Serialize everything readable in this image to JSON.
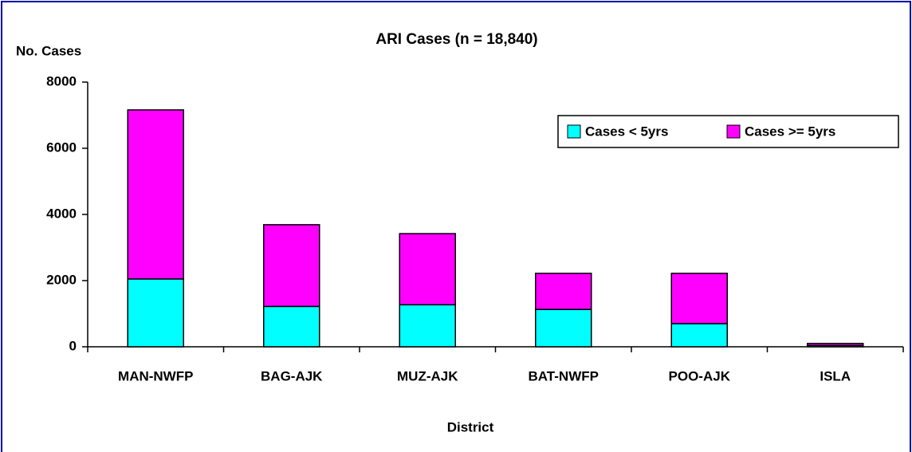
{
  "chart_data": {
    "type": "stacked_bar",
    "title": "ARI Cases (n = 18,840)",
    "y_label": "No. Cases",
    "x_label": "District",
    "categories": [
      "MAN-NWFP",
      "BAG-AJK",
      "MUZ-AJK",
      "BAT-NWFP",
      "POO-AJK",
      "ISLA"
    ],
    "series": [
      {
        "name": "Cases < 5yrs",
        "color": "#00ffff",
        "values": [
          2050,
          1220,
          1270,
          1130,
          700,
          40
        ]
      },
      {
        "name": "Cases >= 5yrs",
        "color": "#ff00ff",
        "values": [
          5110,
          2470,
          2150,
          1090,
          1520,
          60
        ]
      }
    ],
    "ylim": [
      0,
      8000
    ],
    "yticks": [
      0,
      2000,
      4000,
      6000,
      8000
    ],
    "legend": "upper right"
  }
}
